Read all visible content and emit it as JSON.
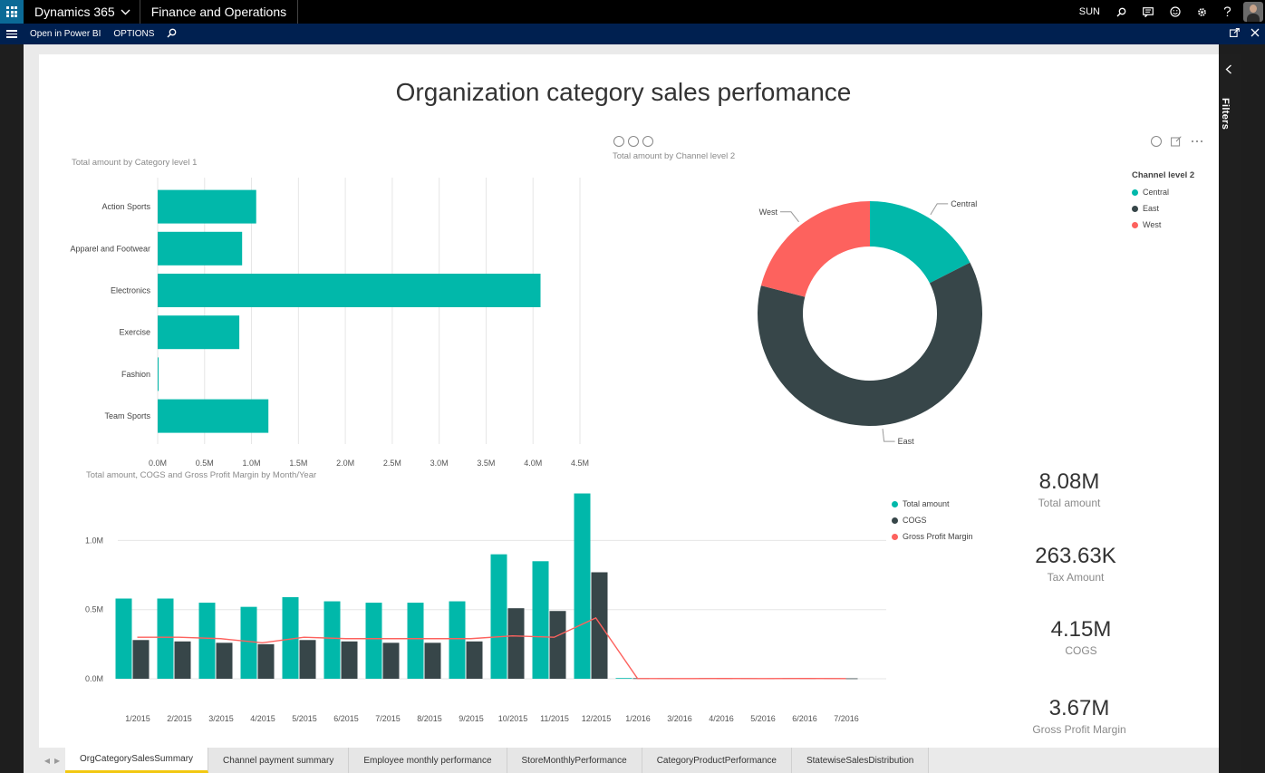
{
  "header": {
    "brand": "Dynamics 365",
    "module": "Finance and Operations",
    "company": "SUN"
  },
  "actionbar": {
    "open_power_bi": "Open in Power BI",
    "options": "OPTIONS"
  },
  "filters": {
    "label": "Filters"
  },
  "report": {
    "title": "Organization category sales perfomance",
    "bar_caption": "Total amount by Category level 1",
    "donut_caption": "Total amount by Channel level 2",
    "combo_caption": "Total amount, COGS and Gross Profit Margin by Month/Year"
  },
  "chart_data": [
    {
      "type": "bar",
      "orientation": "horizontal",
      "title": "Total amount by Category level 1",
      "categories": [
        "Action Sports",
        "Apparel and Footwear",
        "Electronics",
        "Exercise",
        "Fashion",
        "Team Sports"
      ],
      "values": [
        1.05,
        0.9,
        4.08,
        0.87,
        0.01,
        1.18
      ],
      "unit": "M",
      "xlim": [
        0,
        4.5
      ],
      "xticks": [
        "0.0M",
        "0.5M",
        "1.0M",
        "1.5M",
        "2.0M",
        "2.5M",
        "3.0M",
        "3.5M",
        "4.0M",
        "4.5M"
      ],
      "grid": true,
      "color": "#01b8aa"
    },
    {
      "type": "pie",
      "variant": "donut",
      "title": "Total amount by Channel level 2",
      "legend_title": "Channel level 2",
      "legend_position": "right",
      "slices": [
        {
          "name": "Central",
          "value": 17.5,
          "color": "#01b8aa"
        },
        {
          "name": "East",
          "value": 61.5,
          "color": "#374649"
        },
        {
          "name": "West",
          "value": 21.0,
          "color": "#fd625e"
        }
      ]
    },
    {
      "type": "bar",
      "variant": "combo",
      "title": "Total amount, COGS and Gross Profit Margin by Month/Year",
      "categories": [
        "1/2015",
        "2/2015",
        "3/2015",
        "4/2015",
        "5/2015",
        "6/2015",
        "7/2015",
        "8/2015",
        "9/2015",
        "10/2015",
        "11/2015",
        "12/2015",
        "1/2016",
        "3/2016",
        "4/2016",
        "5/2016",
        "6/2016",
        "7/2016"
      ],
      "ylim": [
        0,
        1.35
      ],
      "yticks": [
        "0.0M",
        "0.5M",
        "1.0M"
      ],
      "legend_position": "top-right",
      "series": [
        {
          "name": "Total amount",
          "kind": "bar",
          "color": "#01b8aa",
          "values": [
            0.58,
            0.58,
            0.55,
            0.52,
            0.59,
            0.56,
            0.55,
            0.55,
            0.56,
            0.9,
            0.85,
            1.34,
            0.005,
            0.004,
            0.005,
            0.004,
            0.005,
            0.004
          ]
        },
        {
          "name": "COGS",
          "kind": "bar",
          "color": "#374649",
          "values": [
            0.28,
            0.27,
            0.26,
            0.25,
            0.28,
            0.27,
            0.26,
            0.26,
            0.27,
            0.51,
            0.49,
            0.77,
            0.004,
            0.003,
            0.004,
            0.003,
            0.004,
            0.003
          ]
        },
        {
          "name": "Gross Profit Margin",
          "kind": "line",
          "color": "#fd625e",
          "values": [
            0.3,
            0.3,
            0.29,
            0.26,
            0.3,
            0.29,
            0.29,
            0.29,
            0.29,
            0.31,
            0.3,
            0.44,
            0.002,
            0.001,
            0.002,
            0.001,
            0.002,
            0.001
          ]
        }
      ]
    }
  ],
  "kpis": [
    {
      "value": "8.08M",
      "label": "Total amount"
    },
    {
      "value": "263.63K",
      "label": "Tax Amount"
    },
    {
      "value": "4.15M",
      "label": "COGS"
    },
    {
      "value": "3.67M",
      "label": "Gross Profit Margin"
    }
  ],
  "tabs": [
    {
      "label": "OrgCategorySalesSummary",
      "active": true
    },
    {
      "label": "Channel payment summary"
    },
    {
      "label": "Employee monthly performance"
    },
    {
      "label": "StoreMonthlyPerformance"
    },
    {
      "label": "CategoryProductPerformance"
    },
    {
      "label": "StatewiseSalesDistribution"
    }
  ]
}
